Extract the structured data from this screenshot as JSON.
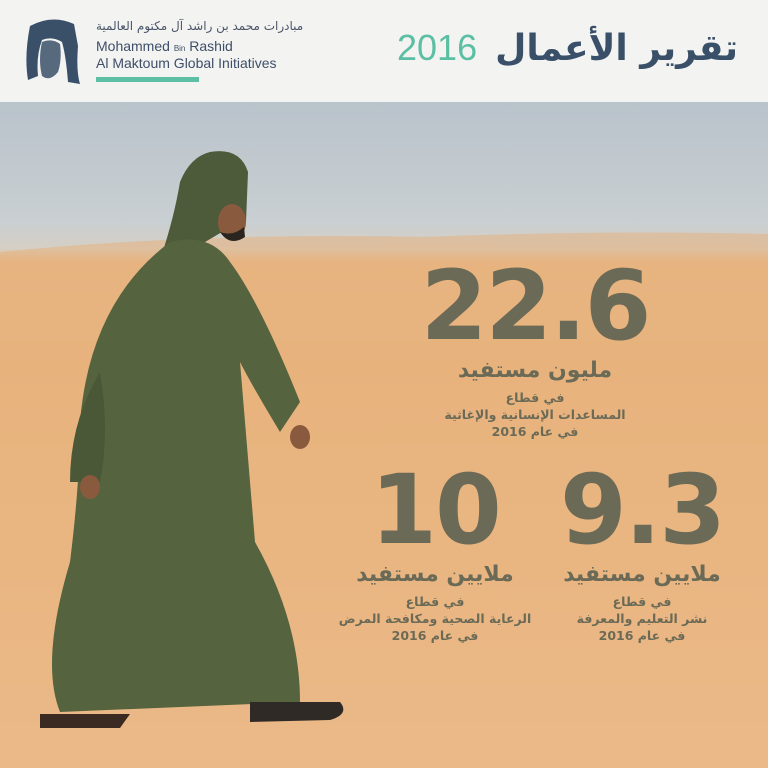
{
  "header": {
    "org_name_ar": "مبادرات محمد بن راشد آل مكتوم العالمية",
    "org_name_en_line1_a": "Mohammed",
    "org_name_en_line1_b": "Bin",
    "org_name_en_line1_c": "Rashid",
    "org_name_en_line2": "Al Maktoum Global Initiatives",
    "title_ar": "تقرير الأعمال",
    "title_year": "2016"
  },
  "colors": {
    "accent": "#5cbfa3",
    "title": "#3a5068",
    "stat_text": "#6b6a56",
    "robe": "#4d5b3b"
  },
  "stats": [
    {
      "value": "22.6",
      "unit": "مليون مستفيد",
      "desc": [
        "في قطاع",
        "المساعدات الإنسانية والإغاثية",
        "في عام 2016"
      ]
    },
    {
      "value": "10",
      "unit": "ملايين مستفيد",
      "desc": [
        "في قطاع",
        "الرعاية الصحية ومكافحة المرض",
        "في عام 2016"
      ]
    },
    {
      "value": "9.3",
      "unit": "ملايين مستفيد",
      "desc": [
        "في قطاع",
        "نشر التعليم والمعرفة",
        "في عام 2016"
      ]
    }
  ]
}
